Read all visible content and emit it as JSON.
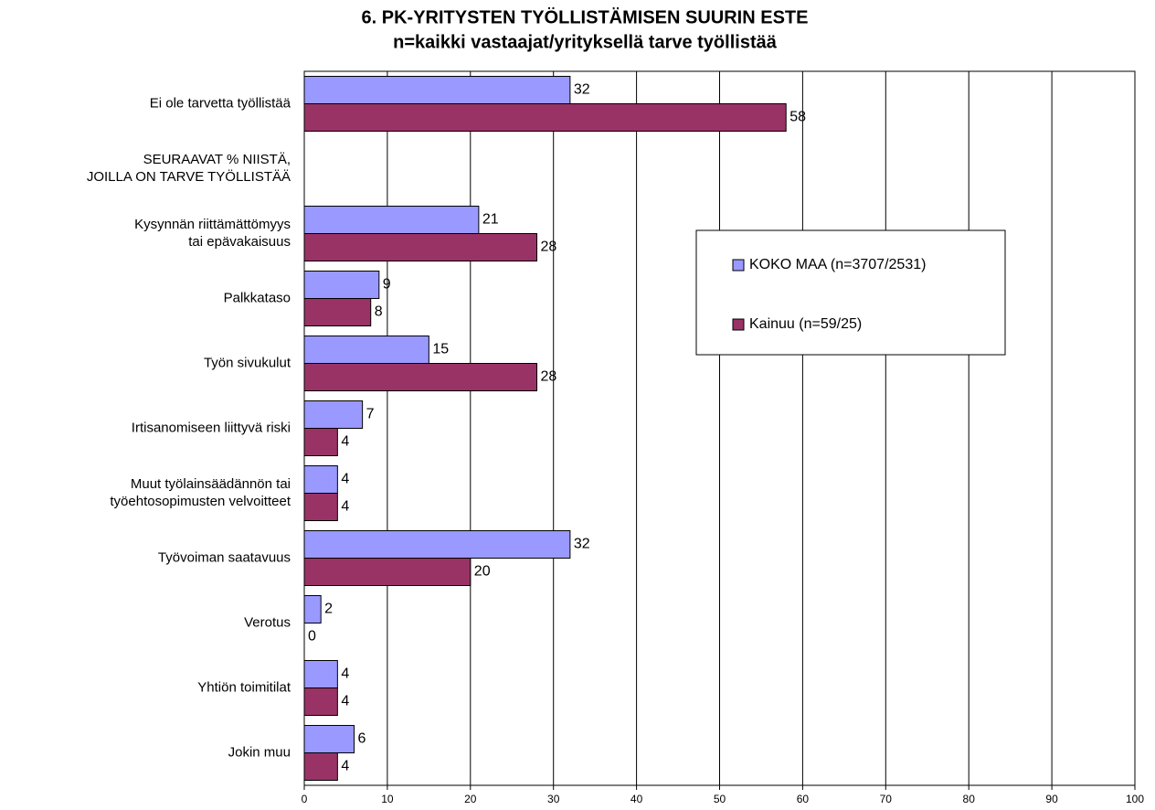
{
  "chart_data": {
    "type": "hbar",
    "title": "6. PK-YRITYSTEN TYÖLLISTÄMISEN SUURIN ESTE",
    "subtitle": "n=kaikki vastaajat/yrityksellä tarve työllistää",
    "categories": [
      "Ei ole tarvetta työllistää",
      "SEURAAVAT % NIISTÄ,\nJOILLA ON TARVE TYÖLLISTÄÄ",
      "Kysynnän riittämättömyys\ntai epävakaisuus",
      "Palkkataso",
      "Työn sivukulut",
      "Irtisanomiseen liittyvä riski",
      "Muut työlainsäädännön tai\ntyöehtosopimusten velvoitteet",
      "Työvoiman saatavuus",
      "Verotus",
      "Yhtiön toimitilat",
      "Jokin muu"
    ],
    "series": [
      {
        "name": "KOKO MAA (n=3707/2531)",
        "color": "#9999ff",
        "values": [
          32,
          null,
          21,
          9,
          15,
          7,
          4,
          32,
          2,
          4,
          6
        ]
      },
      {
        "name": "Kainuu (n=59/25)",
        "color": "#993366",
        "values": [
          58,
          null,
          28,
          8,
          28,
          4,
          4,
          20,
          0,
          4,
          4
        ]
      }
    ],
    "xlim": [
      0,
      100
    ],
    "xticks": [
      0,
      10,
      20,
      30,
      40,
      50,
      60,
      70,
      80,
      90,
      100
    ],
    "grid": true
  }
}
